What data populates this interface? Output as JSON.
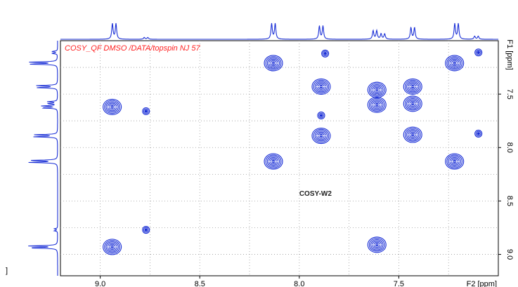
{
  "chart_data": {
    "type": "scatter",
    "title": "COSY_QF DMSO /DATA/topspin NJ 57",
    "annotation": "COSY-W2",
    "xlabel": "F2 [ppm]",
    "ylabel": "F1 [ppm]",
    "xlim": [
      9.2,
      7.0
    ],
    "ylim": [
      7.0,
      9.2
    ],
    "x_ticks": [
      "9.0",
      "8.5",
      "8.0",
      "7.5"
    ],
    "y_ticks": [
      "7.5",
      "8.0",
      "8.5",
      "9.0"
    ],
    "grid": true,
    "contour_color": "#1a2fd6",
    "title_color": "#ff2020",
    "cross_peaks": [
      {
        "x": 8.94,
        "y": 8.93,
        "size": "large"
      },
      {
        "x": 8.94,
        "y": 7.62,
        "size": "large"
      },
      {
        "x": 8.77,
        "y": 8.77,
        "size": "small"
      },
      {
        "x": 8.77,
        "y": 7.66,
        "size": "small"
      },
      {
        "x": 8.13,
        "y": 7.21,
        "size": "large"
      },
      {
        "x": 8.13,
        "y": 8.13,
        "size": "large"
      },
      {
        "x": 7.89,
        "y": 7.43,
        "size": "large"
      },
      {
        "x": 7.89,
        "y": 7.89,
        "size": "large"
      },
      {
        "x": 7.87,
        "y": 7.12,
        "size": "small"
      },
      {
        "x": 7.89,
        "y": 7.7,
        "size": "small"
      },
      {
        "x": 7.61,
        "y": 8.91,
        "size": "large"
      },
      {
        "x": 7.61,
        "y": 7.46,
        "size": "large"
      },
      {
        "x": 7.61,
        "y": 7.6,
        "size": "large"
      },
      {
        "x": 7.43,
        "y": 7.43,
        "size": "large"
      },
      {
        "x": 7.43,
        "y": 7.59,
        "size": "large"
      },
      {
        "x": 7.43,
        "y": 7.88,
        "size": "large"
      },
      {
        "x": 7.22,
        "y": 7.21,
        "size": "large"
      },
      {
        "x": 7.22,
        "y": 8.13,
        "size": "large"
      },
      {
        "x": 7.1,
        "y": 7.11,
        "size": "small"
      },
      {
        "x": 7.1,
        "y": 7.87,
        "size": "small"
      }
    ],
    "projection_peaks": [
      {
        "shift": 8.93,
        "height": 1.0
      },
      {
        "shift": 8.77,
        "height": 0.12
      },
      {
        "shift": 8.13,
        "height": 1.0
      },
      {
        "shift": 7.89,
        "height": 0.85
      },
      {
        "shift": 7.62,
        "height": 0.55
      },
      {
        "shift": 7.58,
        "height": 0.35
      },
      {
        "shift": 7.43,
        "height": 0.75
      },
      {
        "shift": 7.21,
        "height": 1.0
      },
      {
        "shift": 7.11,
        "height": 0.2
      }
    ]
  }
}
